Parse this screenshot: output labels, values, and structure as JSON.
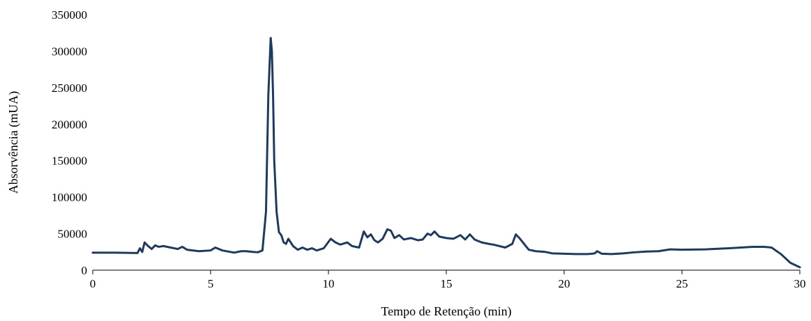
{
  "chart_data": {
    "type": "line",
    "title": "",
    "xlabel": "Tempo de Retenção (min)",
    "ylabel": "Absorvência (mUA)",
    "xlim": [
      0,
      30
    ],
    "ylim": [
      0,
      350000
    ],
    "xticks": [
      0,
      5,
      10,
      15,
      20,
      25,
      30
    ],
    "yticks": [
      0,
      50000,
      100000,
      150000,
      200000,
      250000,
      300000,
      350000
    ],
    "grid": false,
    "legend": "none",
    "colors": {
      "line": "#1f3a5f",
      "axis": "#000000"
    },
    "series": [
      {
        "x": [
          0,
          1.0,
          1.9,
          2.0,
          2.1,
          2.2,
          2.35,
          2.5,
          2.65,
          2.8,
          3.0,
          3.3,
          3.6,
          3.8,
          4.0,
          4.5,
          5.0,
          5.2,
          5.5,
          6.0,
          6.3,
          6.5,
          6.8,
          7.0,
          7.2,
          7.35,
          7.45,
          7.55,
          7.6,
          7.65,
          7.7,
          7.8,
          7.9,
          8.0,
          8.1,
          8.2,
          8.3,
          8.5,
          8.7,
          8.9,
          9.1,
          9.3,
          9.5,
          9.8,
          10.1,
          10.3,
          10.5,
          10.8,
          11.0,
          11.3,
          11.5,
          11.65,
          11.8,
          11.95,
          12.1,
          12.3,
          12.5,
          12.65,
          12.8,
          13.0,
          13.2,
          13.5,
          13.8,
          14.0,
          14.2,
          14.35,
          14.5,
          14.7,
          15.0,
          15.3,
          15.6,
          15.8,
          16.0,
          16.2,
          16.5,
          16.8,
          17.0,
          17.5,
          17.8,
          17.95,
          18.1,
          18.3,
          18.5,
          18.8,
          19.2,
          19.5,
          20.0,
          20.5,
          21.0,
          21.3,
          21.4,
          21.6,
          22.0,
          22.5,
          23.0,
          23.5,
          24.0,
          24.5,
          25.0,
          26.0,
          27.0,
          28.0,
          28.5,
          28.8,
          29.2,
          29.6,
          30.0
        ],
        "values": [
          24000,
          24000,
          23500,
          30000,
          25000,
          38000,
          33000,
          29000,
          34000,
          32000,
          33000,
          31000,
          29000,
          32000,
          28000,
          26000,
          27000,
          31000,
          27000,
          24000,
          26000,
          26000,
          25000,
          24500,
          27000,
          80000,
          240000,
          318000,
          300000,
          240000,
          150000,
          80000,
          52000,
          48000,
          38000,
          36000,
          43000,
          33000,
          28000,
          31000,
          28000,
          30000,
          27000,
          30000,
          43000,
          38000,
          35000,
          38000,
          33000,
          31000,
          53000,
          45000,
          49000,
          41000,
          38000,
          43000,
          56000,
          54000,
          44000,
          48000,
          42000,
          44000,
          41000,
          42000,
          50000,
          48000,
          53000,
          46000,
          44000,
          43000,
          48000,
          42000,
          49000,
          42000,
          38000,
          36000,
          35000,
          31000,
          36000,
          49000,
          44000,
          36000,
          28000,
          26000,
          25000,
          23000,
          22500,
          22000,
          22000,
          23000,
          26000,
          22500,
          22000,
          23000,
          24500,
          25500,
          26000,
          28500,
          28000,
          28500,
          30000,
          32000,
          32000,
          31000,
          22000,
          10000,
          4000
        ]
      }
    ]
  }
}
